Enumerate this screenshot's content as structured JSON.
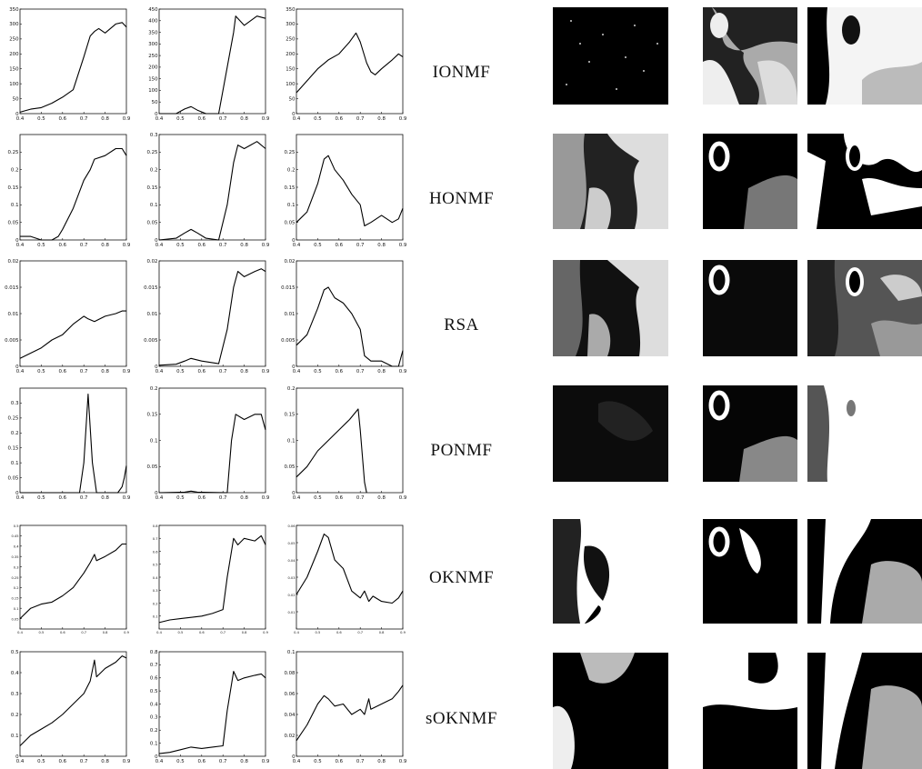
{
  "x_ticks": [
    "0.4",
    "0.5",
    "0.6",
    "0.7",
    "0.8",
    "0.9"
  ],
  "rows": [
    {
      "label": "IONMF"
    },
    {
      "label": "HONMF"
    },
    {
      "label": "RSA"
    },
    {
      "label": "PONMF"
    },
    {
      "label": "OKNMF"
    },
    {
      "label": "sOKNMF"
    }
  ],
  "chart_data": [
    {
      "type": "line",
      "row": "IONMF",
      "col": 1,
      "xlim": [
        0.4,
        0.9
      ],
      "ylim": [
        0,
        350
      ],
      "y_ticks": [
        "0",
        "50",
        "100",
        "150",
        "200",
        "250",
        "300",
        "350"
      ],
      "x": [
        0.4,
        0.45,
        0.5,
        0.55,
        0.6,
        0.65,
        0.7,
        0.73,
        0.75,
        0.77,
        0.8,
        0.85,
        0.88,
        0.9
      ],
      "values": [
        5,
        15,
        20,
        35,
        55,
        80,
        190,
        260,
        275,
        285,
        270,
        300,
        305,
        290
      ]
    },
    {
      "type": "line",
      "row": "IONMF",
      "col": 2,
      "xlim": [
        0.4,
        0.9
      ],
      "ylim": [
        0,
        450
      ],
      "y_ticks": [
        "0",
        "50",
        "100",
        "150",
        "200",
        "250",
        "300",
        "350",
        "400",
        "450"
      ],
      "x": [
        0.4,
        0.48,
        0.52,
        0.55,
        0.58,
        0.62,
        0.68,
        0.72,
        0.75,
        0.76,
        0.8,
        0.83,
        0.86,
        0.9
      ],
      "values": [
        0,
        0,
        20,
        30,
        15,
        0,
        0,
        200,
        350,
        420,
        380,
        400,
        420,
        410
      ]
    },
    {
      "type": "line",
      "row": "IONMF",
      "col": 3,
      "xlim": [
        0.4,
        0.9
      ],
      "ylim": [
        0,
        350
      ],
      "y_ticks": [
        "0",
        "50",
        "100",
        "150",
        "200",
        "250",
        "300",
        "350"
      ],
      "x": [
        0.4,
        0.45,
        0.5,
        0.55,
        0.6,
        0.65,
        0.68,
        0.7,
        0.73,
        0.75,
        0.77,
        0.8,
        0.85,
        0.88,
        0.9
      ],
      "values": [
        70,
        110,
        150,
        180,
        200,
        240,
        270,
        240,
        170,
        140,
        130,
        150,
        180,
        200,
        190
      ]
    },
    {
      "type": "line",
      "row": "HONMF",
      "col": 1,
      "xlim": [
        0.4,
        0.9
      ],
      "ylim": [
        0,
        0.3
      ],
      "y_ticks": [
        "0",
        "0.05",
        "0.1",
        "0.15",
        "0.2",
        "0.25"
      ],
      "x": [
        0.4,
        0.45,
        0.5,
        0.55,
        0.58,
        0.6,
        0.65,
        0.7,
        0.73,
        0.75,
        0.8,
        0.85,
        0.88,
        0.9
      ],
      "values": [
        0.01,
        0.01,
        0,
        0,
        0.01,
        0.03,
        0.09,
        0.17,
        0.2,
        0.23,
        0.24,
        0.26,
        0.26,
        0.24
      ]
    },
    {
      "type": "line",
      "row": "HONMF",
      "col": 2,
      "xlim": [
        0.4,
        0.9
      ],
      "ylim": [
        0,
        0.3
      ],
      "y_ticks": [
        "0",
        "0.05",
        "0.1",
        "0.15",
        "0.2",
        "0.25",
        "0.3"
      ],
      "x": [
        0.4,
        0.48,
        0.52,
        0.55,
        0.58,
        0.62,
        0.68,
        0.72,
        0.75,
        0.77,
        0.8,
        0.83,
        0.86,
        0.9
      ],
      "values": [
        0,
        0.005,
        0.02,
        0.03,
        0.02,
        0.005,
        0,
        0.1,
        0.22,
        0.27,
        0.26,
        0.27,
        0.28,
        0.26
      ]
    },
    {
      "type": "line",
      "row": "HONMF",
      "col": 3,
      "xlim": [
        0.4,
        0.9
      ],
      "ylim": [
        0,
        0.3
      ],
      "y_ticks": [
        "0",
        "0.05",
        "0.1",
        "0.15",
        "0.2",
        "0.25"
      ],
      "x": [
        0.4,
        0.45,
        0.5,
        0.53,
        0.55,
        0.58,
        0.62,
        0.66,
        0.7,
        0.72,
        0.75,
        0.8,
        0.85,
        0.88,
        0.9
      ],
      "values": [
        0.05,
        0.08,
        0.16,
        0.23,
        0.24,
        0.2,
        0.17,
        0.13,
        0.1,
        0.04,
        0.05,
        0.07,
        0.05,
        0.06,
        0.09
      ]
    },
    {
      "type": "line",
      "row": "RSA",
      "col": 1,
      "xlim": [
        0.4,
        0.9
      ],
      "ylim": [
        0,
        0.02
      ],
      "y_ticks": [
        "0",
        "0.005",
        "0.01",
        "0.015",
        "0.02"
      ],
      "x": [
        0.4,
        0.45,
        0.5,
        0.55,
        0.6,
        0.65,
        0.7,
        0.72,
        0.75,
        0.8,
        0.85,
        0.88,
        0.9
      ],
      "values": [
        0.0015,
        0.0025,
        0.0035,
        0.005,
        0.006,
        0.008,
        0.0095,
        0.009,
        0.0085,
        0.0095,
        0.01,
        0.0105,
        0.0105
      ]
    },
    {
      "type": "line",
      "row": "RSA",
      "col": 2,
      "xlim": [
        0.4,
        0.9
      ],
      "ylim": [
        0,
        0.02
      ],
      "y_ticks": [
        "0",
        "0.005",
        "0.01",
        "0.015",
        "0.02"
      ],
      "x": [
        0.4,
        0.48,
        0.52,
        0.55,
        0.6,
        0.68,
        0.72,
        0.75,
        0.77,
        0.8,
        0.85,
        0.88,
        0.9
      ],
      "values": [
        0.0002,
        0.0004,
        0.001,
        0.0015,
        0.001,
        0.0005,
        0.007,
        0.015,
        0.018,
        0.017,
        0.018,
        0.0185,
        0.018
      ]
    },
    {
      "type": "line",
      "row": "RSA",
      "col": 3,
      "xlim": [
        0.4,
        0.9
      ],
      "ylim": [
        0,
        0.02
      ],
      "y_ticks": [
        "0",
        "0.005",
        "0.01",
        "0.015",
        "0.02"
      ],
      "x": [
        0.4,
        0.45,
        0.5,
        0.53,
        0.55,
        0.58,
        0.62,
        0.66,
        0.7,
        0.72,
        0.75,
        0.8,
        0.85,
        0.88,
        0.9
      ],
      "values": [
        0.004,
        0.006,
        0.011,
        0.0145,
        0.015,
        0.013,
        0.012,
        0.01,
        0.007,
        0.002,
        0.001,
        0.001,
        0,
        0,
        0.003
      ]
    },
    {
      "type": "line",
      "row": "PONMF",
      "col": 1,
      "xlim": [
        0.4,
        0.9
      ],
      "ylim": [
        0,
        0.35
      ],
      "y_ticks": [
        "0",
        "0.05",
        "0.1",
        "0.15",
        "0.2",
        "0.25",
        "0.3"
      ],
      "x": [
        0.4,
        0.68,
        0.7,
        0.72,
        0.74,
        0.76,
        0.86,
        0.88,
        0.89,
        0.9
      ],
      "values": [
        0,
        0,
        0.1,
        0.33,
        0.1,
        0,
        0,
        0.02,
        0.05,
        0.09
      ]
    },
    {
      "type": "line",
      "row": "PONMF",
      "col": 2,
      "xlim": [
        0.4,
        0.9
      ],
      "ylim": [
        0,
        0.2
      ],
      "y_ticks": [
        "0",
        "0.05",
        "0.1",
        "0.15",
        "0.2"
      ],
      "x": [
        0.4,
        0.52,
        0.55,
        0.58,
        0.72,
        0.74,
        0.76,
        0.8,
        0.85,
        0.88,
        0.9
      ],
      "values": [
        0,
        0.001,
        0.003,
        0.001,
        0,
        0.1,
        0.15,
        0.14,
        0.15,
        0.15,
        0.12
      ]
    },
    {
      "type": "line",
      "row": "PONMF",
      "col": 3,
      "xlim": [
        0.4,
        0.9
      ],
      "ylim": [
        0,
        0.2
      ],
      "y_ticks": [
        "0",
        "0.05",
        "0.1",
        "0.15",
        "0.2"
      ],
      "x": [
        0.4,
        0.45,
        0.5,
        0.55,
        0.6,
        0.65,
        0.69,
        0.7,
        0.72,
        0.73
      ],
      "values": [
        0.03,
        0.05,
        0.08,
        0.1,
        0.12,
        0.14,
        0.16,
        0.12,
        0.02,
        0
      ]
    },
    {
      "type": "line",
      "row": "OKNMF",
      "col": 1,
      "xlim": [
        0.4,
        0.9
      ],
      "ylim": [
        0,
        0.5
      ],
      "y_ticks": [
        "0.05",
        "0.1",
        "0.15",
        "0.2",
        "0.25",
        "0.3",
        "0.35",
        "0.4",
        "0.45",
        "0.5"
      ],
      "x": [
        0.4,
        0.45,
        0.5,
        0.55,
        0.6,
        0.65,
        0.7,
        0.73,
        0.75,
        0.76,
        0.8,
        0.85,
        0.88,
        0.9
      ],
      "values": [
        0.05,
        0.1,
        0.12,
        0.13,
        0.16,
        0.2,
        0.27,
        0.32,
        0.36,
        0.33,
        0.35,
        0.38,
        0.41,
        0.41
      ]
    },
    {
      "type": "line",
      "row": "OKNMF",
      "col": 2,
      "xlim": [
        0.4,
        0.9
      ],
      "ylim": [
        0,
        0.8
      ],
      "y_ticks": [
        "0.1",
        "0.2",
        "0.3",
        "0.4",
        "0.5",
        "0.6",
        "0.7",
        "0.8"
      ],
      "x": [
        0.4,
        0.45,
        0.5,
        0.55,
        0.6,
        0.65,
        0.7,
        0.72,
        0.75,
        0.77,
        0.8,
        0.85,
        0.88,
        0.9
      ],
      "values": [
        0.05,
        0.07,
        0.08,
        0.09,
        0.1,
        0.12,
        0.15,
        0.4,
        0.7,
        0.65,
        0.7,
        0.68,
        0.72,
        0.65
      ]
    },
    {
      "type": "line",
      "row": "OKNMF",
      "col": 3,
      "xlim": [
        0.4,
        0.9
      ],
      "ylim": [
        0,
        0.06
      ],
      "y_ticks": [
        "0.01",
        "0.02",
        "0.03",
        "0.04",
        "0.05",
        "0.06"
      ],
      "x": [
        0.4,
        0.45,
        0.5,
        0.53,
        0.55,
        0.58,
        0.62,
        0.66,
        0.7,
        0.72,
        0.74,
        0.76,
        0.8,
        0.85,
        0.88,
        0.9
      ],
      "values": [
        0.02,
        0.03,
        0.045,
        0.055,
        0.053,
        0.04,
        0.035,
        0.022,
        0.018,
        0.022,
        0.016,
        0.019,
        0.016,
        0.015,
        0.018,
        0.022
      ]
    },
    {
      "type": "line",
      "row": "sOKNMF",
      "col": 1,
      "xlim": [
        0.4,
        0.9
      ],
      "ylim": [
        0,
        0.5
      ],
      "y_ticks": [
        "0",
        "0.1",
        "0.2",
        "0.3",
        "0.4",
        "0.5"
      ],
      "x": [
        0.4,
        0.45,
        0.5,
        0.55,
        0.6,
        0.65,
        0.7,
        0.73,
        0.75,
        0.76,
        0.8,
        0.85,
        0.88,
        0.9
      ],
      "values": [
        0.05,
        0.1,
        0.13,
        0.16,
        0.2,
        0.25,
        0.3,
        0.36,
        0.46,
        0.38,
        0.42,
        0.45,
        0.48,
        0.47
      ]
    },
    {
      "type": "line",
      "row": "sOKNMF",
      "col": 2,
      "xlim": [
        0.4,
        0.9
      ],
      "ylim": [
        0,
        0.8
      ],
      "y_ticks": [
        "0",
        "0.1",
        "0.2",
        "0.3",
        "0.4",
        "0.5",
        "0.6",
        "0.7",
        "0.8"
      ],
      "x": [
        0.4,
        0.45,
        0.5,
        0.55,
        0.6,
        0.65,
        0.7,
        0.72,
        0.75,
        0.77,
        0.8,
        0.85,
        0.88,
        0.9
      ],
      "values": [
        0.02,
        0.03,
        0.05,
        0.07,
        0.06,
        0.07,
        0.08,
        0.35,
        0.65,
        0.58,
        0.6,
        0.62,
        0.63,
        0.6
      ]
    },
    {
      "type": "line",
      "row": "sOKNMF",
      "col": 3,
      "xlim": [
        0.4,
        0.9
      ],
      "ylim": [
        0,
        0.1
      ],
      "y_ticks": [
        "0",
        "0.02",
        "0.04",
        "0.06",
        "0.08",
        "0.1"
      ],
      "x": [
        0.4,
        0.45,
        0.5,
        0.53,
        0.55,
        0.58,
        0.62,
        0.66,
        0.7,
        0.72,
        0.74,
        0.75,
        0.8,
        0.85,
        0.88,
        0.9
      ],
      "values": [
        0.015,
        0.03,
        0.05,
        0.058,
        0.055,
        0.048,
        0.05,
        0.04,
        0.045,
        0.04,
        0.055,
        0.045,
        0.05,
        0.055,
        0.062,
        0.068
      ]
    }
  ]
}
